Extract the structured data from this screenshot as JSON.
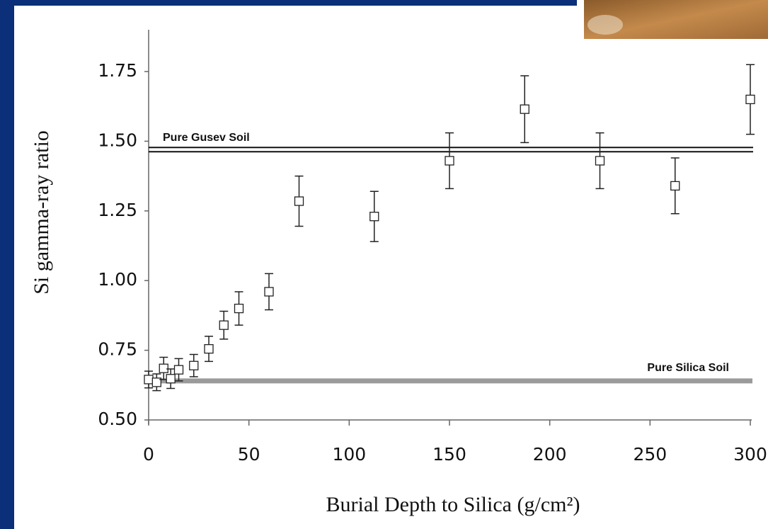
{
  "chart_data": {
    "type": "scatter",
    "xlabel": "Burial Depth to Silica (g/cm²)",
    "ylabel": "Si gamma-ray ratio",
    "x": [
      0,
      4,
      7.5,
      11,
      15,
      22.5,
      30,
      37.5,
      45,
      60,
      75,
      112.5,
      150,
      187.5,
      225,
      262.5,
      300
    ],
    "values": [
      0.645,
      0.635,
      0.685,
      0.648,
      0.68,
      0.695,
      0.755,
      0.84,
      0.9,
      0.96,
      1.285,
      1.23,
      1.43,
      1.615,
      1.43,
      1.34,
      1.65
    ],
    "errors": [
      0.03,
      0.03,
      0.04,
      0.035,
      0.04,
      0.04,
      0.045,
      0.05,
      0.06,
      0.065,
      0.09,
      0.09,
      0.1,
      0.12,
      0.1,
      0.1,
      0.125
    ],
    "color": "#ffffff",
    "xlim": [
      0,
      300
    ],
    "xticks": [
      0,
      50,
      100,
      150,
      200,
      250,
      300
    ],
    "ylim": [
      0.5,
      1.9
    ],
    "yticks": [
      {
        "value": 0.5,
        "label": "0.50"
      },
      {
        "value": 0.75,
        "label": "0.75"
      },
      {
        "value": 1,
        "label": "1.00"
      },
      {
        "value": 1.25,
        "label": "1.25"
      },
      {
        "value": 1.5,
        "label": "1.50"
      },
      {
        "value": 1.75,
        "label": "1.75"
      }
    ],
    "reference_lines": [
      {
        "label": "Pure Gusev Soil",
        "value": 1.47,
        "style": "double",
        "color": "#111111"
      },
      {
        "label": "Pure Silica Soil",
        "value": 0.64,
        "style": "thick",
        "color": "#9a9a9a"
      }
    ]
  }
}
